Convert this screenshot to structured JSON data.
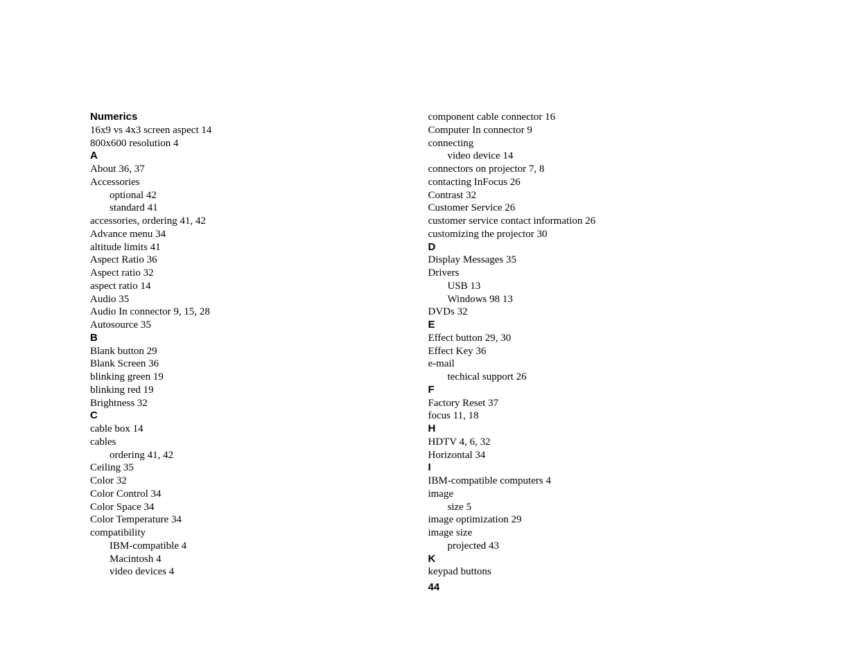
{
  "pageNumber": "44",
  "left": [
    {
      "type": "heading",
      "text": "Numerics"
    },
    {
      "type": "entry",
      "text": "16x9 vs 4x3 screen aspect 14"
    },
    {
      "type": "entry",
      "text": "800x600 resolution 4"
    },
    {
      "type": "heading",
      "text": "A"
    },
    {
      "type": "entry",
      "text": "About 36, 37"
    },
    {
      "type": "entry",
      "text": "Accessories"
    },
    {
      "type": "sub",
      "text": "optional 42"
    },
    {
      "type": "sub",
      "text": "standard 41"
    },
    {
      "type": "entry",
      "text": "accessories, ordering 41, 42"
    },
    {
      "type": "entry",
      "text": "Advance menu 34"
    },
    {
      "type": "entry",
      "text": "altitude limits 41"
    },
    {
      "type": "entry",
      "text": "Aspect Ratio 36"
    },
    {
      "type": "entry",
      "text": "Aspect ratio 32"
    },
    {
      "type": "entry",
      "text": "aspect ratio 14"
    },
    {
      "type": "entry",
      "text": "Audio 35"
    },
    {
      "type": "entry",
      "text": "Audio In connector 9, 15, 28"
    },
    {
      "type": "entry",
      "text": "Autosource 35"
    },
    {
      "type": "heading",
      "text": "B"
    },
    {
      "type": "entry",
      "text": "Blank button 29"
    },
    {
      "type": "entry",
      "text": "Blank Screen 36"
    },
    {
      "type": "entry",
      "text": "blinking green 19"
    },
    {
      "type": "entry",
      "text": "blinking red 19"
    },
    {
      "type": "entry",
      "text": "Brightness 32"
    },
    {
      "type": "heading",
      "text": "C"
    },
    {
      "type": "entry",
      "text": "cable box 14"
    },
    {
      "type": "entry",
      "text": "cables"
    },
    {
      "type": "sub",
      "text": "ordering 41, 42"
    },
    {
      "type": "entry",
      "text": "Ceiling 35"
    },
    {
      "type": "entry",
      "text": "Color 32"
    },
    {
      "type": "entry",
      "text": "Color Control 34"
    },
    {
      "type": "entry",
      "text": "Color Space 34"
    },
    {
      "type": "entry",
      "text": "Color Temperature 34"
    },
    {
      "type": "entry",
      "text": "compatibility"
    },
    {
      "type": "sub",
      "text": "IBM-compatible 4"
    },
    {
      "type": "sub",
      "text": "Macintosh 4"
    },
    {
      "type": "sub",
      "text": "video devices 4"
    }
  ],
  "right": [
    {
      "type": "entry",
      "text": "component cable connector 16"
    },
    {
      "type": "entry",
      "text": "Computer In connector 9"
    },
    {
      "type": "entry",
      "text": "connecting"
    },
    {
      "type": "sub",
      "text": "video device 14"
    },
    {
      "type": "entry",
      "text": "connectors on projector 7, 8"
    },
    {
      "type": "entry",
      "text": "contacting InFocus 26"
    },
    {
      "type": "entry",
      "text": "Contrast 32"
    },
    {
      "type": "entry",
      "text": "Customer Service 26"
    },
    {
      "type": "entry",
      "text": "customer service contact information 26"
    },
    {
      "type": "entry",
      "text": "customizing the projector 30"
    },
    {
      "type": "heading",
      "text": "D"
    },
    {
      "type": "entry",
      "text": "Display Messages 35"
    },
    {
      "type": "entry",
      "text": "Drivers"
    },
    {
      "type": "sub",
      "text": "USB 13"
    },
    {
      "type": "sub",
      "text": "Windows 98 13"
    },
    {
      "type": "entry",
      "text": "DVDs 32"
    },
    {
      "type": "heading",
      "text": "E"
    },
    {
      "type": "entry",
      "text": "Effect button 29, 30"
    },
    {
      "type": "entry",
      "text": "Effect Key 36"
    },
    {
      "type": "entry",
      "text": "e-mail"
    },
    {
      "type": "sub",
      "text": "techical support 26"
    },
    {
      "type": "heading",
      "text": "F"
    },
    {
      "type": "entry",
      "text": "Factory Reset 37"
    },
    {
      "type": "entry",
      "text": "focus 11, 18"
    },
    {
      "type": "heading",
      "text": "H"
    },
    {
      "type": "entry",
      "text": "HDTV 4, 6, 32"
    },
    {
      "type": "entry",
      "text": "Horizontal 34"
    },
    {
      "type": "heading",
      "text": "I"
    },
    {
      "type": "entry",
      "text": "IBM-compatible computers 4"
    },
    {
      "type": "entry",
      "text": "image"
    },
    {
      "type": "sub",
      "text": "size 5"
    },
    {
      "type": "entry",
      "text": "image optimization 29"
    },
    {
      "type": "entry",
      "text": "image size"
    },
    {
      "type": "sub",
      "text": "projected 43"
    },
    {
      "type": "heading",
      "text": "K"
    },
    {
      "type": "entry",
      "text": "keypad buttons"
    }
  ]
}
